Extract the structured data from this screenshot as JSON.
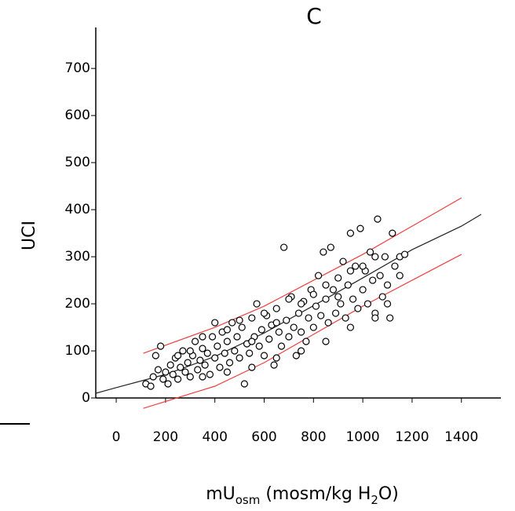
{
  "chart_data": {
    "type": "scatter",
    "title": "C",
    "x_label": {
      "main": "mU",
      "sub": "osm",
      "rest": " (mosm/kg H",
      "sub2": "2",
      "end": "O)"
    },
    "y_label": "UCI",
    "xlim": [
      -83,
      1560
    ],
    "ylim": [
      0,
      787
    ],
    "xticks": [
      0,
      200,
      400,
      600,
      800,
      1000,
      1200,
      1400
    ],
    "yticks": [
      0,
      100,
      200,
      300,
      400,
      500,
      600,
      700
    ],
    "points": {
      "color": "#000000",
      "x": [
        120,
        140,
        150,
        160,
        170,
        180,
        190,
        200,
        210,
        220,
        230,
        240,
        250,
        260,
        270,
        280,
        290,
        300,
        310,
        320,
        330,
        340,
        350,
        360,
        370,
        380,
        390,
        400,
        410,
        420,
        430,
        440,
        450,
        460,
        470,
        480,
        490,
        500,
        510,
        520,
        530,
        540,
        550,
        560,
        570,
        580,
        590,
        600,
        610,
        620,
        630,
        640,
        650,
        660,
        670,
        680,
        690,
        700,
        710,
        720,
        730,
        740,
        750,
        760,
        770,
        780,
        790,
        800,
        810,
        820,
        830,
        840,
        850,
        860,
        870,
        880,
        890,
        900,
        910,
        920,
        930,
        940,
        950,
        960,
        970,
        980,
        990,
        1000,
        1010,
        1020,
        1030,
        1040,
        1050,
        1060,
        1070,
        1080,
        1090,
        1100,
        1110,
        1120,
        1130,
        1150,
        1170,
        250,
        300,
        350,
        400,
        450,
        500,
        550,
        600,
        650,
        700,
        750,
        800,
        850,
        900,
        950,
        1000,
        1050,
        1100,
        1150,
        350,
        450,
        550,
        650,
        750,
        850,
        950,
        1050
      ],
      "y": [
        30,
        25,
        45,
        90,
        60,
        110,
        40,
        55,
        30,
        70,
        50,
        85,
        40,
        65,
        100,
        55,
        75,
        45,
        90,
        120,
        60,
        80,
        105,
        70,
        95,
        50,
        130,
        85,
        110,
        65,
        140,
        95,
        120,
        75,
        160,
        100,
        130,
        85,
        150,
        30,
        115,
        95,
        170,
        130,
        200,
        110,
        145,
        90,
        175,
        125,
        155,
        70,
        190,
        140,
        110,
        320,
        165,
        130,
        215,
        150,
        90,
        180,
        140,
        205,
        120,
        170,
        230,
        150,
        195,
        260,
        175,
        310,
        210,
        160,
        320,
        230,
        180,
        255,
        200,
        290,
        170,
        240,
        350,
        210,
        280,
        190,
        360,
        230,
        270,
        200,
        310,
        250,
        180,
        380,
        260,
        215,
        300,
        240,
        170,
        350,
        280,
        300,
        305,
        90,
        100,
        130,
        160,
        145,
        165,
        120,
        180,
        160,
        210,
        200,
        220,
        240,
        215,
        270,
        280,
        300,
        200,
        260,
        45,
        55,
        65,
        85,
        100,
        120,
        150,
        170
      ]
    },
    "series": [
      {
        "color": "#222222",
        "x": [
          -83,
          0,
          200,
          400,
          600,
          800,
          1000,
          1200,
          1400,
          1480
        ],
        "values": [
          10,
          22,
          50,
          88,
          138,
          196,
          255,
          315,
          365,
          390
        ]
      },
      {
        "color": "#f04040",
        "x": [
          110,
          400,
          600,
          800,
          1000,
          1200,
          1400
        ],
        "values": [
          95,
          150,
          195,
          250,
          305,
          365,
          425
        ]
      },
      {
        "color": "#f04040",
        "x": [
          110,
          400,
          600,
          800,
          1000,
          1200,
          1400
        ],
        "values": [
          -22,
          25,
          75,
          135,
          195,
          250,
          305
        ]
      }
    ]
  }
}
